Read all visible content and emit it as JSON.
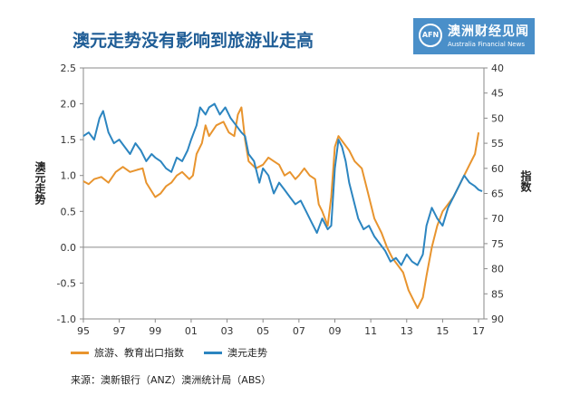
{
  "title": "澳元走势没有影响到旅游业走高",
  "logo": {
    "mark": "AFN",
    "name_cn": "澳洲财经见闻",
    "name_en": "Australia Financial News"
  },
  "source": "来源：澳新银行（ANZ）澳洲统计局（ABS）",
  "chart_data": {
    "type": "line",
    "ylabel": "澳元走势",
    "y2label": "指数",
    "xlim": [
      95,
      117.3
    ],
    "ylim": [
      -1.0,
      2.5
    ],
    "y2lim": [
      40,
      90
    ],
    "y2_inverted": true,
    "grid": false,
    "legend_position": "bottom-left",
    "x_ticks": [
      "95",
      "97",
      "99",
      "01",
      "03",
      "05",
      "07",
      "09",
      "11",
      "13",
      "15",
      "17"
    ],
    "y_ticks": [
      "2.5",
      "2.0",
      "1.5",
      "1.0",
      "0.5",
      "0.0",
      "-0.5",
      "-1.0"
    ],
    "y2_ticks": [
      "40",
      "45",
      "50",
      "55",
      "60",
      "65",
      "70",
      "75",
      "80",
      "85",
      "90"
    ],
    "series": [
      {
        "name": "旅游、教育出口指数",
        "axis": "left",
        "color": "#e8942e",
        "points": [
          [
            95.0,
            0.92
          ],
          [
            95.3,
            0.88
          ],
          [
            95.6,
            0.95
          ],
          [
            96.0,
            0.98
          ],
          [
            96.4,
            0.9
          ],
          [
            96.8,
            1.05
          ],
          [
            97.2,
            1.12
          ],
          [
            97.6,
            1.05
          ],
          [
            98.0,
            1.08
          ],
          [
            98.3,
            1.1
          ],
          [
            98.5,
            0.9
          ],
          [
            98.8,
            0.78
          ],
          [
            99.0,
            0.7
          ],
          [
            99.3,
            0.75
          ],
          [
            99.6,
            0.85
          ],
          [
            99.9,
            0.9
          ],
          [
            100.2,
            1.0
          ],
          [
            100.5,
            1.05
          ],
          [
            100.9,
            0.95
          ],
          [
            101.1,
            1.0
          ],
          [
            101.3,
            1.3
          ],
          [
            101.6,
            1.45
          ],
          [
            101.8,
            1.7
          ],
          [
            102.0,
            1.55
          ],
          [
            102.4,
            1.7
          ],
          [
            102.8,
            1.75
          ],
          [
            103.1,
            1.6
          ],
          [
            103.4,
            1.55
          ],
          [
            103.6,
            1.85
          ],
          [
            103.8,
            1.95
          ],
          [
            104.0,
            1.5
          ],
          [
            104.2,
            1.2
          ],
          [
            104.6,
            1.1
          ],
          [
            105.0,
            1.15
          ],
          [
            105.3,
            1.25
          ],
          [
            105.6,
            1.2
          ],
          [
            105.9,
            1.15
          ],
          [
            106.2,
            1.0
          ],
          [
            106.5,
            1.05
          ],
          [
            106.8,
            0.95
          ],
          [
            107.0,
            1.0
          ],
          [
            107.3,
            1.1
          ],
          [
            107.6,
            1.0
          ],
          [
            107.9,
            0.95
          ],
          [
            108.1,
            0.6
          ],
          [
            108.3,
            0.5
          ],
          [
            108.6,
            0.3
          ],
          [
            108.8,
            0.7
          ],
          [
            109.0,
            1.4
          ],
          [
            109.2,
            1.55
          ],
          [
            109.5,
            1.45
          ],
          [
            109.8,
            1.35
          ],
          [
            110.1,
            1.2
          ],
          [
            110.5,
            1.1
          ],
          [
            110.8,
            0.8
          ],
          [
            111.2,
            0.4
          ],
          [
            111.6,
            0.2
          ],
          [
            111.9,
            0.0
          ],
          [
            112.2,
            -0.15
          ],
          [
            112.5,
            -0.25
          ],
          [
            112.8,
            -0.35
          ],
          [
            113.1,
            -0.6
          ],
          [
            113.4,
            -0.75
          ],
          [
            113.6,
            -0.85
          ],
          [
            113.9,
            -0.7
          ],
          [
            114.1,
            -0.4
          ],
          [
            114.4,
            0.0
          ],
          [
            114.7,
            0.3
          ],
          [
            115.0,
            0.5
          ],
          [
            115.3,
            0.6
          ],
          [
            115.6,
            0.7
          ],
          [
            115.9,
            0.85
          ],
          [
            116.2,
            1.0
          ],
          [
            116.5,
            1.15
          ],
          [
            116.8,
            1.3
          ],
          [
            117.0,
            1.6
          ]
        ]
      },
      {
        "name": "澳元走势",
        "axis": "left",
        "color": "#2c85c0",
        "points": [
          [
            95.0,
            1.55
          ],
          [
            95.3,
            1.6
          ],
          [
            95.6,
            1.5
          ],
          [
            95.9,
            1.8
          ],
          [
            96.1,
            1.9
          ],
          [
            96.4,
            1.6
          ],
          [
            96.7,
            1.45
          ],
          [
            97.0,
            1.5
          ],
          [
            97.3,
            1.4
          ],
          [
            97.6,
            1.3
          ],
          [
            97.9,
            1.45
          ],
          [
            98.2,
            1.35
          ],
          [
            98.5,
            1.2
          ],
          [
            98.8,
            1.3
          ],
          [
            99.0,
            1.25
          ],
          [
            99.3,
            1.2
          ],
          [
            99.6,
            1.1
          ],
          [
            99.9,
            1.05
          ],
          [
            100.2,
            1.25
          ],
          [
            100.5,
            1.2
          ],
          [
            100.8,
            1.35
          ],
          [
            101.0,
            1.5
          ],
          [
            101.3,
            1.7
          ],
          [
            101.5,
            1.95
          ],
          [
            101.8,
            1.85
          ],
          [
            102.0,
            1.95
          ],
          [
            102.3,
            2.0
          ],
          [
            102.6,
            1.85
          ],
          [
            102.9,
            1.95
          ],
          [
            103.2,
            1.8
          ],
          [
            103.5,
            1.7
          ],
          [
            103.8,
            1.6
          ],
          [
            104.0,
            1.55
          ],
          [
            104.2,
            1.3
          ],
          [
            104.5,
            1.2
          ],
          [
            104.8,
            0.9
          ],
          [
            105.0,
            1.1
          ],
          [
            105.3,
            1.0
          ],
          [
            105.6,
            0.75
          ],
          [
            105.9,
            0.9
          ],
          [
            106.2,
            0.8
          ],
          [
            106.5,
            0.7
          ],
          [
            106.8,
            0.6
          ],
          [
            107.1,
            0.65
          ],
          [
            107.4,
            0.5
          ],
          [
            107.7,
            0.35
          ],
          [
            108.0,
            0.2
          ],
          [
            108.3,
            0.4
          ],
          [
            108.6,
            0.25
          ],
          [
            108.8,
            0.3
          ],
          [
            109.0,
            1.1
          ],
          [
            109.2,
            1.5
          ],
          [
            109.4,
            1.4
          ],
          [
            109.6,
            1.2
          ],
          [
            109.8,
            0.9
          ],
          [
            110.0,
            0.7
          ],
          [
            110.3,
            0.4
          ],
          [
            110.6,
            0.25
          ],
          [
            110.9,
            0.3
          ],
          [
            111.2,
            0.15
          ],
          [
            111.5,
            0.05
          ],
          [
            111.8,
            -0.05
          ],
          [
            112.1,
            -0.2
          ],
          [
            112.4,
            -0.15
          ],
          [
            112.7,
            -0.25
          ],
          [
            113.0,
            -0.1
          ],
          [
            113.3,
            -0.2
          ],
          [
            113.6,
            -0.25
          ],
          [
            113.9,
            -0.1
          ],
          [
            114.1,
            0.3
          ],
          [
            114.4,
            0.55
          ],
          [
            114.7,
            0.4
          ],
          [
            115.0,
            0.3
          ],
          [
            115.3,
            0.55
          ],
          [
            115.6,
            0.7
          ],
          [
            115.9,
            0.85
          ],
          [
            116.2,
            1.0
          ],
          [
            116.5,
            0.9
          ],
          [
            116.8,
            0.85
          ],
          [
            117.0,
            0.8
          ],
          [
            117.2,
            0.78
          ]
        ]
      }
    ]
  }
}
